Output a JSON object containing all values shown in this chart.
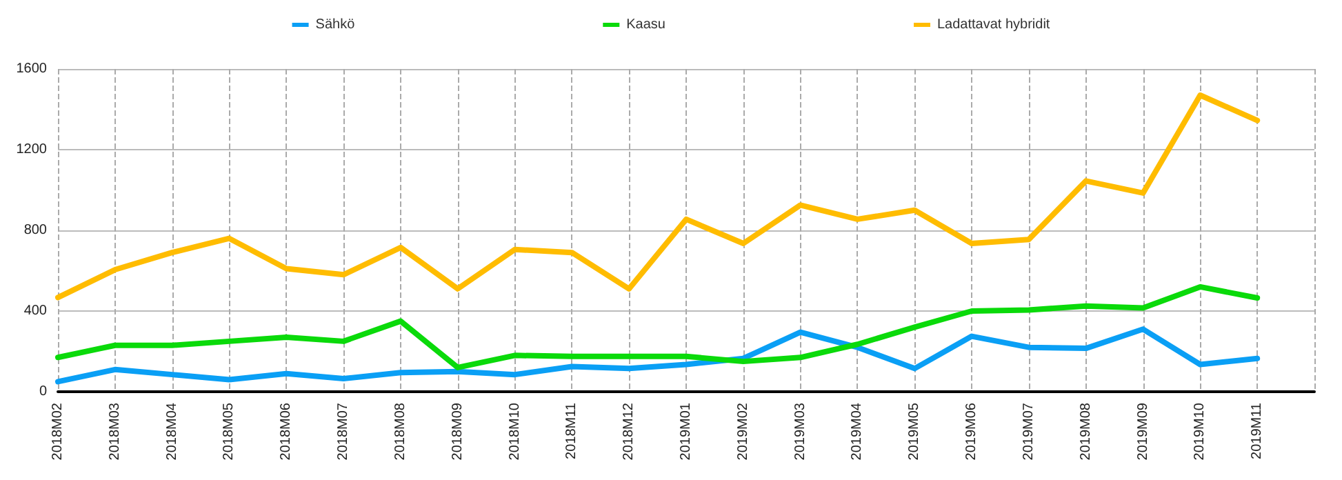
{
  "chart_data": {
    "type": "line",
    "categories": [
      "2018M02",
      "2018M03",
      "2018M04",
      "2018M05",
      "2018M06",
      "2018M07",
      "2018M08",
      "2018M09",
      "2018M10",
      "2018M11",
      "2018M12",
      "2019M01",
      "2019M02",
      "2019M03",
      "2019M04",
      "2019M05",
      "2019M06",
      "2019M07",
      "2019M08",
      "2019M09",
      "2019M10",
      "2019M11",
      null
    ],
    "series": [
      {
        "name": "Sähkö",
        "color": "#0a9ff5",
        "values": [
          50,
          110,
          85,
          60,
          90,
          65,
          95,
          100,
          85,
          125,
          115,
          135,
          165,
          295,
          220,
          115,
          275,
          220,
          215,
          310,
          135,
          165,
          null
        ]
      },
      {
        "name": "Kaasu",
        "color": "#0ada0a",
        "values": [
          170,
          230,
          230,
          250,
          270,
          250,
          350,
          120,
          180,
          175,
          175,
          175,
          150,
          170,
          235,
          320,
          400,
          405,
          425,
          415,
          520,
          465,
          null
        ]
      },
      {
        "name": "Ladattavat hybridit",
        "color": "#ffbc00",
        "values": [
          467,
          605,
          690,
          760,
          610,
          580,
          715,
          510,
          705,
          690,
          510,
          855,
          735,
          925,
          855,
          900,
          735,
          755,
          1045,
          985,
          1470,
          1345,
          null
        ]
      }
    ],
    "ylim": [
      0,
      1600
    ],
    "yticks": [
      0,
      400,
      800,
      1200,
      1600
    ],
    "grid": true,
    "legend": "top",
    "marker": "none",
    "line_style": "solid"
  }
}
